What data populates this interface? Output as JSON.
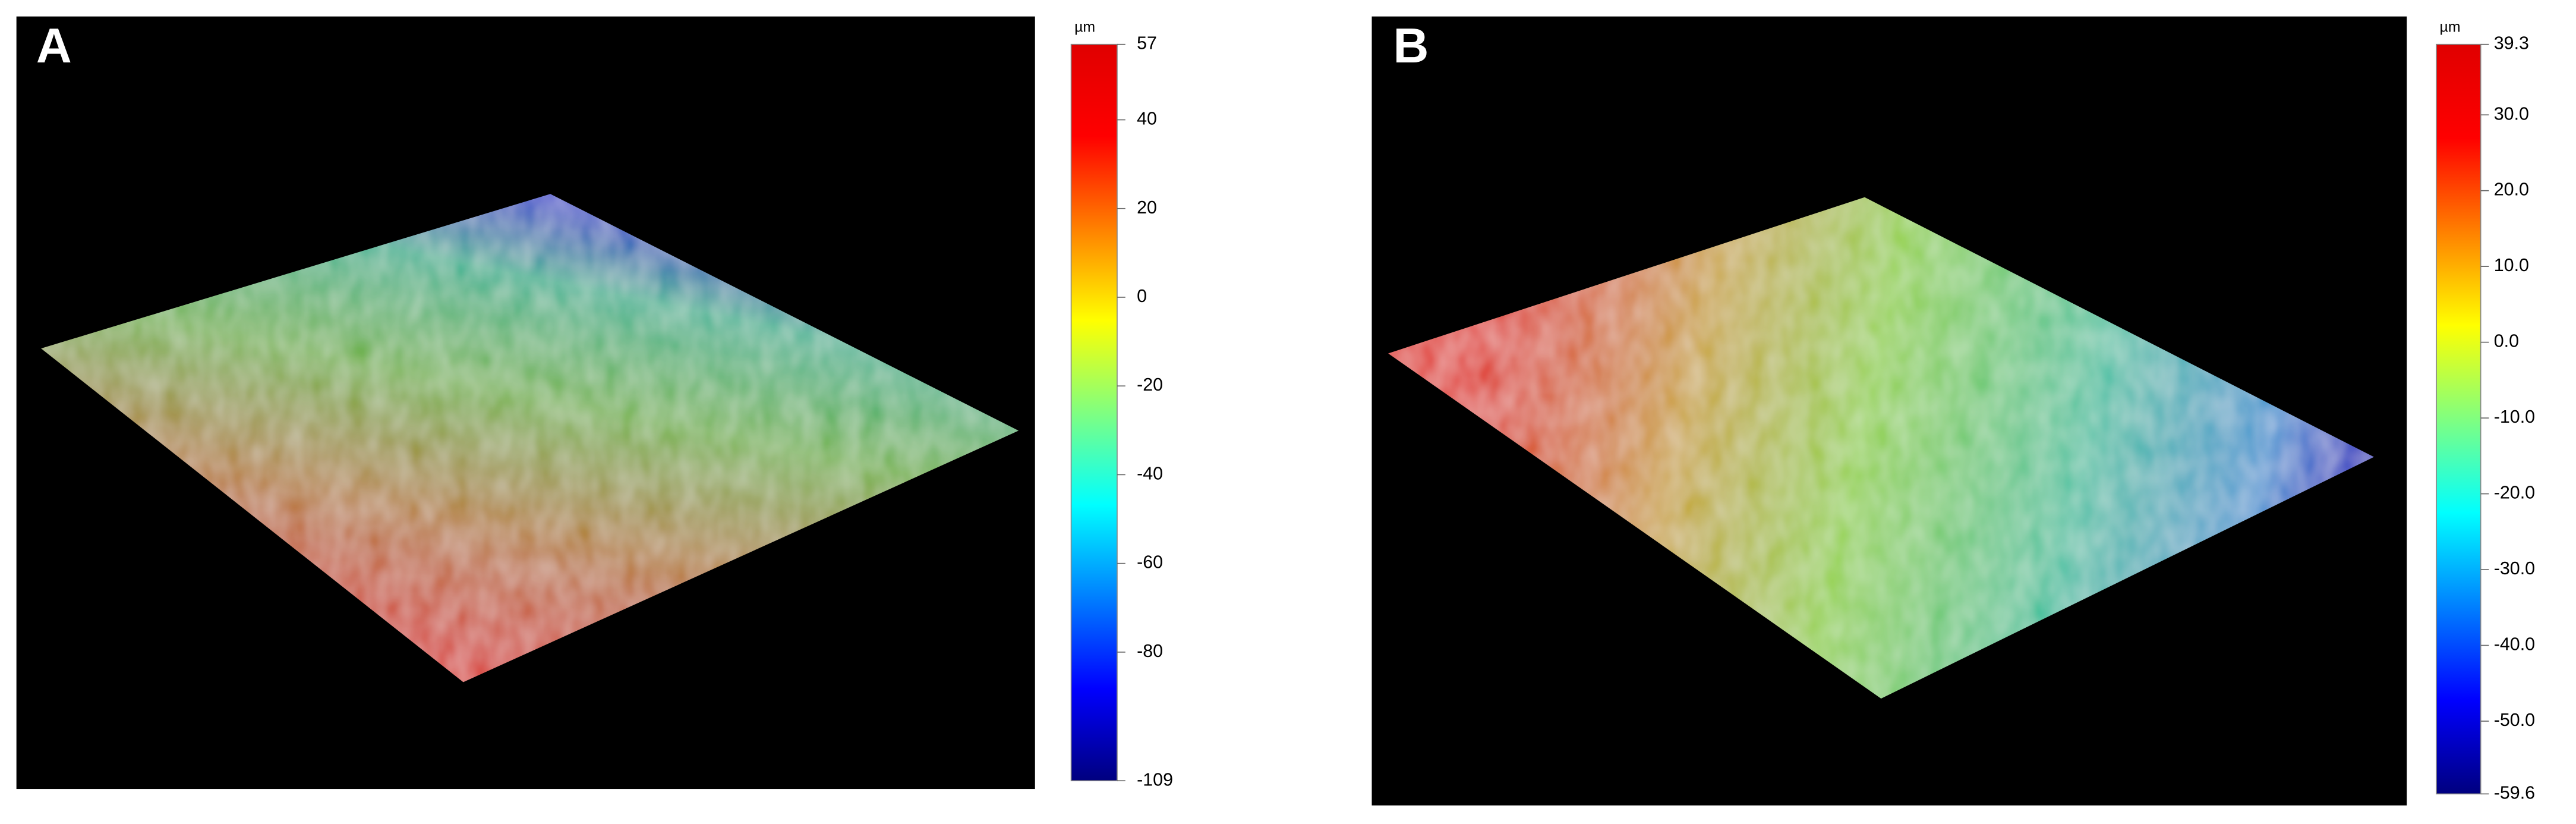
{
  "chart_data": [
    {
      "type": "surface",
      "title": "A",
      "colorbar_label": "µm",
      "zlim": [
        -109,
        57
      ],
      "zticks": [
        57,
        40,
        20,
        0,
        -20,
        -40,
        -60,
        -80,
        -109
      ],
      "colorscale": [
        "#00007f",
        "#0000ff",
        "#0080ff",
        "#00ffff",
        "#80ff80",
        "#ffff00",
        "#ff8000",
        "#ff0000",
        "#e00000"
      ]
    },
    {
      "type": "surface",
      "title": "B",
      "colorbar_label": "µm",
      "zlim": [
        -59.6,
        39.3
      ],
      "zticks": [
        39.3,
        {
          "value": 30,
          "label": "30.0"
        },
        {
          "value": 20,
          "label": "20.0"
        },
        {
          "value": 10,
          "label": "10.0"
        },
        {
          "value": 0,
          "label": "0.0"
        },
        {
          "value": -10,
          "label": "-10.0"
        },
        {
          "value": -20,
          "label": "-20.0"
        },
        {
          "value": -30,
          "label": "-30.0"
        },
        {
          "value": -40,
          "label": "-40.0"
        },
        {
          "value": -50,
          "label": "-50.0"
        },
        -59.6
      ],
      "colorscale": [
        "#00007f",
        "#0000ff",
        "#0080ff",
        "#00ffff",
        "#80ff80",
        "#ffff00",
        "#ff8000",
        "#ff0000",
        "#e00000"
      ]
    }
  ]
}
